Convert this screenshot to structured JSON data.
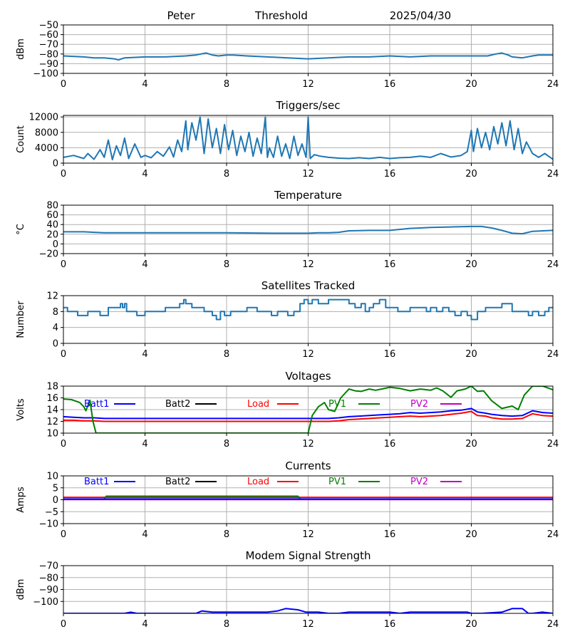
{
  "header": {
    "station": "Peter",
    "threshold_label": "Threshold",
    "date": "2025/04/30"
  },
  "chart_data": [
    {
      "id": "signal",
      "type": "line",
      "title": "",
      "xlabel": "",
      "ylabel": "dBm",
      "xlim": [
        0,
        24
      ],
      "ylim": [
        -100,
        -50
      ],
      "xticks": [
        "0",
        "4",
        "8",
        "12",
        "16",
        "20",
        "24"
      ],
      "yticks": [
        "−100",
        "−90",
        "−80",
        "−70",
        "−60",
        "−50"
      ],
      "grid": true,
      "series": [
        {
          "color": "#1f77b4",
          "x": [
            0,
            1,
            1.5,
            2,
            2.5,
            2.7,
            3,
            4,
            5,
            6,
            6.5,
            7,
            7.3,
            7.6,
            8,
            8.3,
            9,
            10,
            11,
            12,
            13,
            14,
            15,
            16,
            17,
            18,
            19,
            20,
            20.8,
            21.2,
            21.5,
            21.8,
            22,
            22.5,
            23,
            23.3,
            24
          ],
          "y": [
            -82,
            -83,
            -84,
            -84,
            -85,
            -86,
            -84,
            -83,
            -83,
            -82,
            -81,
            -79,
            -81,
            -82,
            -81,
            -81,
            -82,
            -83,
            -84,
            -85,
            -84,
            -83,
            -83,
            -82,
            -83,
            -82,
            -82,
            -82,
            -82,
            -80,
            -79,
            -81,
            -83,
            -84,
            -82,
            -81,
            -81
          ]
        }
      ]
    },
    {
      "id": "triggers",
      "type": "line",
      "title": "Triggers/sec",
      "xlabel": "",
      "ylabel": "Count",
      "xlim": [
        0,
        24
      ],
      "ylim": [
        0,
        12400
      ],
      "xticks": [
        "0",
        "4",
        "8",
        "12",
        "16",
        "20",
        "24"
      ],
      "yticks": [
        "0",
        "4000",
        "8000",
        "12000"
      ],
      "yticks_values": [
        0,
        4000,
        8000,
        12000
      ],
      "grid": true,
      "series": [
        {
          "color": "#1f77b4",
          "x": [
            0,
            0.5,
            1,
            1.2,
            1.5,
            1.8,
            2,
            2.2,
            2.4,
            2.6,
            2.8,
            3,
            3.2,
            3.5,
            3.8,
            4,
            4.3,
            4.6,
            4.9,
            5.2,
            5.4,
            5.6,
            5.8,
            6,
            6.1,
            6.3,
            6.5,
            6.7,
            6.9,
            7.1,
            7.3,
            7.5,
            7.7,
            7.9,
            8.1,
            8.3,
            8.5,
            8.7,
            8.9,
            9.1,
            9.3,
            9.5,
            9.7,
            9.9,
            10,
            10.1,
            10.3,
            10.5,
            10.7,
            10.9,
            11.1,
            11.3,
            11.5,
            11.7,
            11.9,
            12,
            12.1,
            12.3,
            12.6,
            13,
            13.5,
            14,
            14.5,
            15,
            15.5,
            16,
            16.5,
            17,
            17.5,
            18,
            18.5,
            19,
            19.5,
            19.8,
            20,
            20.1,
            20.3,
            20.5,
            20.7,
            20.9,
            21.1,
            21.3,
            21.5,
            21.7,
            21.9,
            22.1,
            22.3,
            22.5,
            22.7,
            23,
            23.3,
            23.6,
            24
          ],
          "y": [
            1500,
            2000,
            1200,
            2500,
            1000,
            3500,
            1500,
            6000,
            900,
            4500,
            2000,
            6500,
            1200,
            5000,
            1500,
            2000,
            1400,
            3000,
            1800,
            4200,
            1600,
            6000,
            3000,
            11000,
            3500,
            10500,
            6000,
            12000,
            2500,
            11500,
            4000,
            9000,
            2500,
            10000,
            3500,
            8500,
            2000,
            7000,
            3000,
            8000,
            1800,
            6500,
            2500,
            12000,
            1500,
            4000,
            1500,
            7000,
            1800,
            5000,
            1200,
            7000,
            2000,
            5000,
            1500,
            12000,
            1200,
            2200,
            1800,
            1500,
            1300,
            1200,
            1400,
            1200,
            1500,
            1200,
            1400,
            1500,
            1800,
            1500,
            2500,
            1600,
            2000,
            3000,
            8500,
            3000,
            9000,
            4000,
            8000,
            3500,
            9500,
            5000,
            10500,
            4500,
            11000,
            3500,
            9000,
            2500,
            5500,
            2500,
            1500,
            2500,
            1000
          ]
        }
      ]
    },
    {
      "id": "temperature",
      "type": "line",
      "title": "Temperature",
      "xlabel": "",
      "ylabel": "°C",
      "xlim": [
        0,
        24
      ],
      "ylim": [
        -20,
        80
      ],
      "xticks": [
        "0",
        "4",
        "8",
        "12",
        "16",
        "20",
        "24"
      ],
      "yticks": [
        "−20",
        "0",
        "20",
        "40",
        "60",
        "80"
      ],
      "grid": true,
      "series": [
        {
          "color": "#1f77b4",
          "x": [
            0,
            1,
            1.5,
            2,
            4,
            8,
            10.5,
            11,
            12,
            12.5,
            13,
            13.5,
            14,
            15,
            16,
            16.5,
            17,
            17.5,
            18,
            19,
            20,
            20.5,
            21,
            21.5,
            22,
            22.5,
            23,
            24
          ],
          "y": [
            25,
            25,
            24,
            23,
            23,
            23,
            22,
            22,
            22,
            23,
            23,
            24,
            27,
            28,
            28,
            30,
            32,
            33,
            34,
            35,
            36,
            36,
            33,
            28,
            22,
            21,
            26,
            28
          ]
        }
      ]
    },
    {
      "id": "satellites",
      "type": "line",
      "title": "Satellites Tracked",
      "xlabel": "",
      "ylabel": "Number",
      "xlim": [
        0,
        24
      ],
      "ylim": [
        0,
        12
      ],
      "xticks": [
        "0",
        "4",
        "8",
        "12",
        "16",
        "20",
        "24"
      ],
      "yticks": [
        "0",
        "4",
        "8",
        "12"
      ],
      "grid": true,
      "series": [
        {
          "color": "#1f77b4",
          "step": true,
          "x": [
            0,
            0.2,
            0.4,
            0.7,
            1.2,
            1.8,
            2.2,
            2.8,
            2.9,
            3,
            3.1,
            3.3,
            3.6,
            4,
            4.5,
            5,
            5.5,
            5.7,
            5.9,
            6,
            6.3,
            6.6,
            6.9,
            7.3,
            7.5,
            7.7,
            7.9,
            8.2,
            8.5,
            9,
            9.5,
            9.8,
            10.2,
            10.5,
            11,
            11.3,
            11.6,
            11.8,
            12,
            12.2,
            12.5,
            13,
            13.5,
            14,
            14.3,
            14.6,
            14.8,
            15,
            15.2,
            15.5,
            15.8,
            16,
            16.4,
            16.8,
            17,
            17.5,
            17.8,
            18,
            18.3,
            18.6,
            18.9,
            19.2,
            19.5,
            19.8,
            20,
            20.3,
            20.7,
            21.5,
            22,
            22.5,
            22.8,
            23,
            23.3,
            23.6,
            23.8,
            24
          ],
          "y": [
            9,
            8,
            8,
            7,
            8,
            7,
            9,
            10,
            9,
            10,
            8,
            8,
            7,
            8,
            8,
            9,
            9,
            10,
            11,
            10,
            9,
            9,
            8,
            7,
            6,
            8,
            7,
            8,
            8,
            9,
            8,
            8,
            7,
            8,
            7,
            8,
            10,
            11,
            10,
            11,
            10,
            11,
            11,
            10,
            9,
            10,
            8,
            9,
            10,
            11,
            9,
            9,
            8,
            8,
            9,
            9,
            8,
            9,
            8,
            9,
            8,
            7,
            8,
            7,
            6,
            8,
            9,
            10,
            8,
            8,
            7,
            8,
            7,
            8,
            9,
            9
          ]
        }
      ]
    },
    {
      "id": "voltages",
      "type": "line",
      "title": "Voltages",
      "xlabel": "",
      "ylabel": "Volts",
      "xlim": [
        0,
        24
      ],
      "ylim": [
        10,
        18
      ],
      "xticks": [
        "0",
        "4",
        "8",
        "12",
        "16",
        "20",
        "24"
      ],
      "yticks": [
        "10",
        "12",
        "14",
        "16",
        "18"
      ],
      "grid": true,
      "legend": [
        {
          "name": "Batt1",
          "color": "#0000ff"
        },
        {
          "name": "Batt2",
          "color": "#000000"
        },
        {
          "name": "Load",
          "color": "#ff0000"
        },
        {
          "name": "PV1",
          "color": "#008000"
        },
        {
          "name": "PV2",
          "color": "#bf00bf"
        }
      ],
      "series": [
        {
          "color": "#0000ff",
          "x": [
            0,
            0.5,
            1,
            1.5,
            2,
            3,
            4,
            6,
            8,
            10,
            12,
            13,
            13.5,
            14,
            14.5,
            15,
            15.5,
            16,
            16.5,
            17,
            17.5,
            18,
            18.5,
            19,
            19.5,
            20,
            20.3,
            20.7,
            21,
            21.5,
            22,
            22.5,
            23,
            23.5,
            24
          ],
          "y": [
            12.8,
            12.7,
            12.6,
            12.6,
            12.5,
            12.5,
            12.5,
            12.5,
            12.5,
            12.5,
            12.5,
            12.5,
            12.6,
            12.8,
            12.9,
            13,
            13.1,
            13.2,
            13.3,
            13.5,
            13.4,
            13.5,
            13.6,
            13.8,
            13.9,
            14.2,
            13.6,
            13.4,
            13.2,
            13,
            12.9,
            13,
            13.8,
            13.5,
            13.4
          ]
        },
        {
          "color": "#ff0000",
          "x": [
            0,
            0.5,
            1,
            1.5,
            2,
            3,
            4,
            6,
            8,
            10,
            12,
            13,
            13.5,
            14,
            14.5,
            15,
            15.5,
            16,
            16.5,
            17,
            17.5,
            18,
            18.5,
            19,
            19.5,
            20,
            20.3,
            20.7,
            21,
            21.5,
            22,
            22.5,
            23,
            23.5,
            24
          ],
          "y": [
            12.2,
            12.2,
            12.1,
            12.1,
            12,
            12,
            12,
            12,
            12,
            12,
            12,
            12,
            12.1,
            12.3,
            12.4,
            12.5,
            12.6,
            12.7,
            12.8,
            12.9,
            12.8,
            12.9,
            13,
            13.2,
            13.4,
            13.7,
            13,
            12.9,
            12.6,
            12.4,
            12.4,
            12.5,
            13.3,
            13,
            12.9
          ]
        },
        {
          "color": "#008000",
          "x": [
            0,
            0.4,
            0.8,
            1,
            1.1,
            1.3,
            1.45,
            1.6,
            12,
            12.2,
            12.5,
            12.8,
            13,
            13.3,
            13.6,
            14,
            14.3,
            14.6,
            15,
            15.3,
            15.6,
            16,
            16.5,
            17,
            17.5,
            18,
            18.3,
            18.6,
            19,
            19.3,
            19.7,
            20,
            20.3,
            20.6,
            21,
            21.5,
            22,
            22.3,
            22.6,
            23,
            23.5,
            24
          ],
          "y": [
            15.8,
            15.7,
            15.2,
            14.5,
            13.8,
            15.6,
            12,
            10,
            10,
            13,
            14.5,
            15.2,
            14,
            13.7,
            16,
            17.5,
            17.2,
            17.1,
            17.5,
            17.3,
            17.5,
            17.8,
            17.6,
            17.2,
            17.5,
            17.3,
            17.7,
            17.2,
            16.1,
            17.2,
            17.5,
            18,
            17.1,
            17.2,
            15.5,
            14.2,
            14.6,
            14,
            16.5,
            18,
            18,
            17.4
          ]
        }
      ]
    },
    {
      "id": "currents",
      "type": "line",
      "title": "Currents",
      "xlabel": "",
      "ylabel": "Amps",
      "xlim": [
        0,
        24
      ],
      "ylim": [
        -10,
        10
      ],
      "xticks": [
        "0",
        "4",
        "8",
        "12",
        "16",
        "20",
        "24"
      ],
      "yticks": [
        "−10",
        "−5",
        "0",
        "5",
        "10"
      ],
      "grid": true,
      "legend": [
        {
          "name": "Batt1",
          "color": "#0000ff"
        },
        {
          "name": "Batt2",
          "color": "#000000"
        },
        {
          "name": "Load",
          "color": "#ff0000"
        },
        {
          "name": "PV1",
          "color": "#008000"
        },
        {
          "name": "PV2",
          "color": "#bf00bf"
        }
      ],
      "series": [
        {
          "color": "#ff0000",
          "x": [
            0,
            4,
            8,
            12,
            16,
            20,
            24
          ],
          "y": [
            1.0,
            1.0,
            1.0,
            1.0,
            1.0,
            1.0,
            1.0
          ]
        },
        {
          "color": "#008000",
          "x": [
            2,
            2.1,
            6,
            11.5,
            11.6
          ],
          "y": [
            0.5,
            1.5,
            1.5,
            1.5,
            0.5
          ]
        },
        {
          "color": "#bf00bf",
          "x": [
            0,
            24
          ],
          "y": [
            0.1,
            0.1
          ]
        },
        {
          "color": "#0000ff",
          "x": [
            0,
            24
          ],
          "y": [
            0.3,
            0.3
          ]
        }
      ]
    },
    {
      "id": "modem",
      "type": "line",
      "title": "Modem Signal Strength",
      "xlabel": "",
      "ylabel": "dBm",
      "xlim": [
        0,
        24
      ],
      "ylim": [
        -110,
        -70
      ],
      "xticks": [
        "0",
        "4",
        "8",
        "12",
        "16",
        "20",
        "24"
      ],
      "yticks": [
        "−100",
        "−90",
        "−80",
        "−70"
      ],
      "yticks_values": [
        -100,
        -90,
        -80,
        -70
      ],
      "grid": true,
      "series": [
        {
          "color": "#0000ff",
          "x": [
            0,
            3,
            3.3,
            3.6,
            4,
            6,
            6.5,
            6.8,
            7.3,
            8,
            10,
            10.5,
            10.9,
            11.5,
            11.9,
            12,
            12.5,
            13,
            13.5,
            14,
            15,
            16,
            16.5,
            17,
            19,
            19.8,
            20,
            20.5,
            21.5,
            22,
            22.5,
            22.8,
            23,
            23.5,
            24
          ],
          "y": [
            -110,
            -110,
            -109,
            -110,
            -110,
            -110,
            -110,
            -108,
            -109,
            -109,
            -109,
            -108,
            -106,
            -107,
            -109,
            -109,
            -109,
            -110,
            -110,
            -109,
            -109,
            -109,
            -110,
            -109,
            -109,
            -109,
            -110,
            -110,
            -109,
            -106,
            -106,
            -110,
            -110,
            -109,
            -110
          ]
        }
      ]
    }
  ]
}
